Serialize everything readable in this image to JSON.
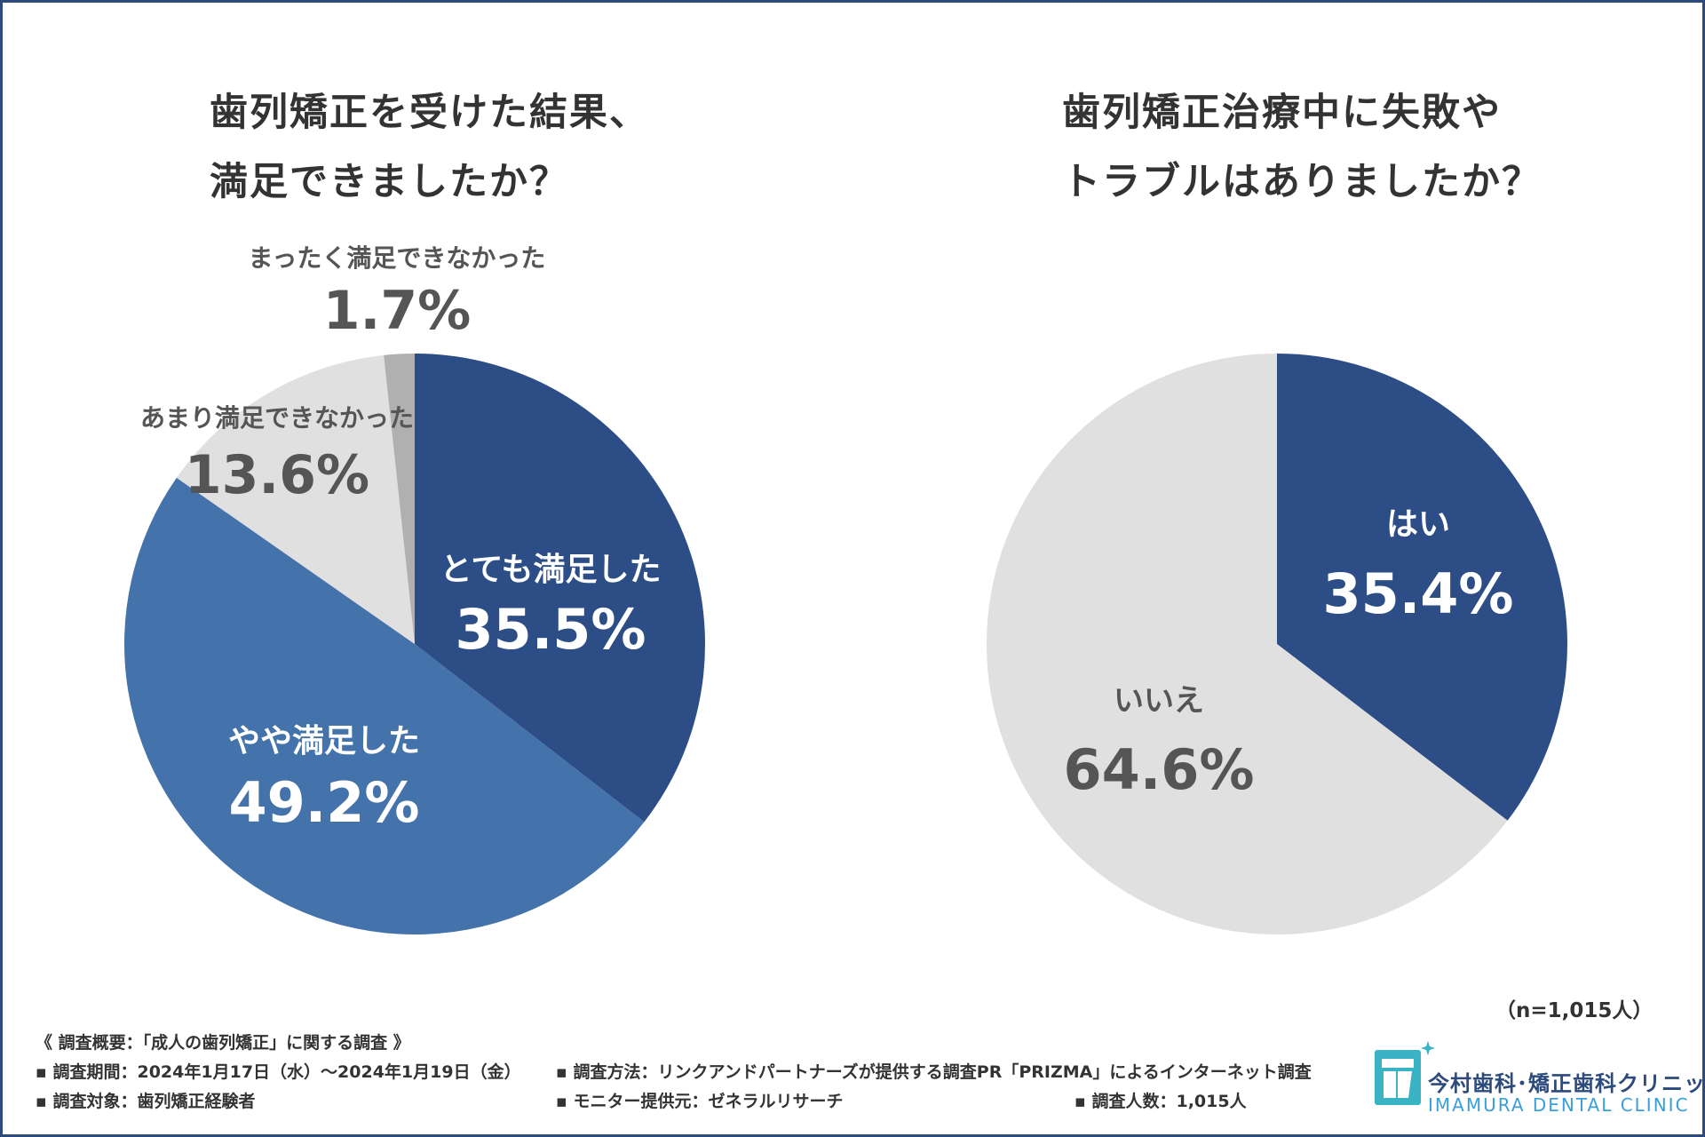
{
  "colors": {
    "very_satisfied": "#2d4d86",
    "somewhat_satisfied": "#4472aa",
    "not_very": "#e0e0e0",
    "not_at_all": "#b0b0b0",
    "yes": "#2d4d86",
    "no": "#e0e0e0",
    "dark_label": "#555555",
    "light_label": "#ffffff"
  },
  "chart_data": [
    {
      "type": "pie",
      "title_lines": [
        "歯列矯正を受けた結果、",
        "満足できましたか？"
      ],
      "start": "top, clockwise",
      "slices": [
        {
          "label": "とても満足した",
          "value": 35.5,
          "display": "35.5%"
        },
        {
          "label": "やや満足した",
          "value": 49.2,
          "display": "49.2%"
        },
        {
          "label": "あまり満足できなかった",
          "value": 13.6,
          "display": "13.6%"
        },
        {
          "label": "まったく満足できなかった",
          "value": 1.7,
          "display": "1.7%"
        }
      ]
    },
    {
      "type": "pie",
      "title_lines": [
        "歯列矯正治療中に失敗や",
        "トラブルはありましたか？"
      ],
      "start": "top, clockwise",
      "slices": [
        {
          "label": "はい",
          "value": 35.4,
          "display": "35.4%"
        },
        {
          "label": "いいえ",
          "value": 64.6,
          "display": "64.6%"
        }
      ]
    }
  ],
  "sample_note": "（n=1,015人）",
  "survey": {
    "header": "《 調査概要：「成人の歯列矯正」に関する調査 》",
    "period": "▪ 調査期間：2024年1月17日（水）〜2024年1月19日（金）",
    "method": "▪ 調査方法：リンクアンドパートナーズが提供する調査PR「PRIZMA」によるインターネット調査",
    "target": "▪ 調査対象：歯列矯正経験者",
    "monitor": "▪ モニター提供元：ゼネラルリサーチ",
    "count": "▪ 調査人数：1,015人"
  },
  "logo": {
    "name_jp": "今村歯科･矯正歯科クリニック",
    "name_en": "IMAMURA DENTAL CLINIC"
  }
}
